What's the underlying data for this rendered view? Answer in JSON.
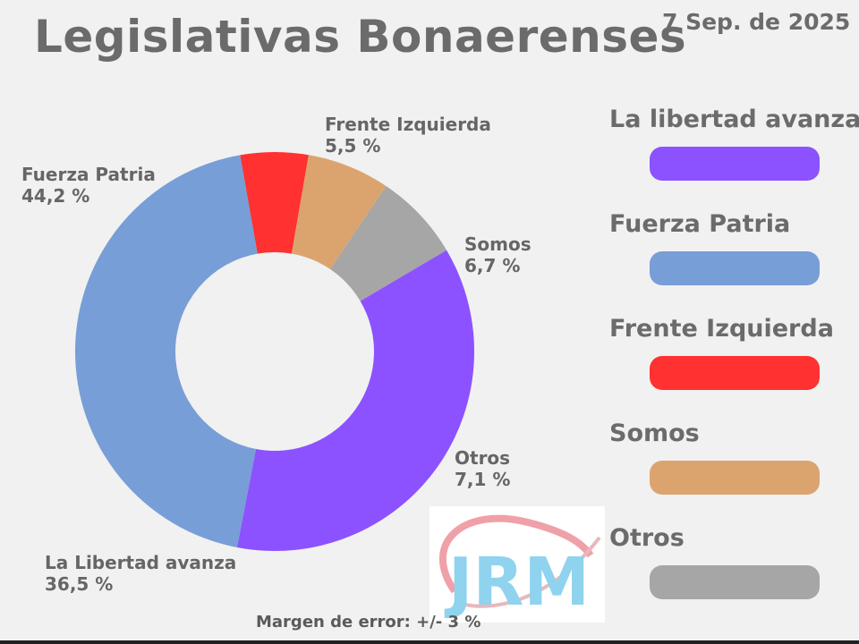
{
  "title": "Legislativas Bonaerenses",
  "date": "7 Sep. de 2025",
  "footer": {
    "margin_note": "Margen de error: +/- 3 %",
    "logo_text": "JRM"
  },
  "legend": [
    {
      "label": "La libertad avanza",
      "color": "#8c52ff"
    },
    {
      "label": "Fuerza Patria",
      "color": "#779ed7"
    },
    {
      "label": "Frente Izquierda",
      "color": "#ff3131"
    },
    {
      "label": "Somos",
      "color": "#dba46e"
    },
    {
      "label": "Otros",
      "color": "#a6a6a6"
    }
  ],
  "chart_data": {
    "type": "pie",
    "donut": true,
    "title": "Legislativas Bonaerenses",
    "slices": [
      {
        "name": "Frente Izquierda",
        "label_line1": "Frente Izquierda",
        "label_line2": "5,5 %",
        "value": 5.5,
        "color": "#ff3131"
      },
      {
        "name": "Somos",
        "label_line1": "Somos",
        "label_line2": "6,7 %",
        "value": 6.7,
        "color": "#dba46e"
      },
      {
        "name": "Otros",
        "label_line1": "Otros",
        "label_line2": "7,1 %",
        "value": 7.1,
        "color": "#a6a6a6"
      },
      {
        "name": "La Libertad avanza",
        "label_line1": "La Libertad avanza",
        "label_line2": "36,5 %",
        "value": 36.5,
        "color": "#8c52ff"
      },
      {
        "name": "Fuerza Patria",
        "label_line1": "Fuerza Patria",
        "label_line2": "44,2 %",
        "value": 44.2,
        "color": "#779ed7"
      }
    ]
  }
}
